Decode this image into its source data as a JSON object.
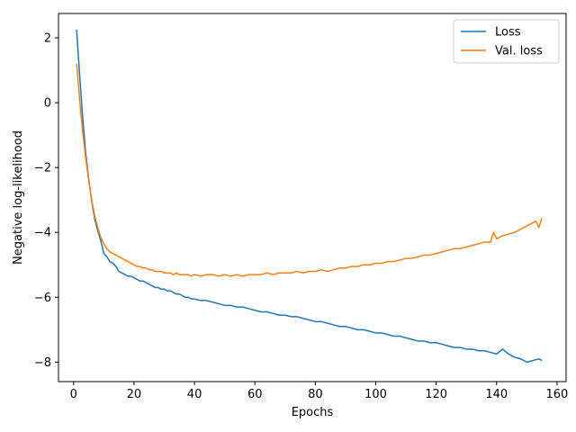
{
  "chart_data": {
    "type": "line",
    "xlabel": "Epochs",
    "ylabel": "Negative log-likelihood",
    "xlim": [
      -5,
      163
    ],
    "ylim": [
      -8.6,
      2.75
    ],
    "xticks": [
      0,
      20,
      40,
      60,
      80,
      100,
      120,
      140,
      160
    ],
    "yticks": [
      -8,
      -6,
      -4,
      -2,
      0,
      2
    ],
    "grid": false,
    "legend_position": "top-right",
    "series": [
      {
        "name": "Loss",
        "color": "#1f77b4",
        "x": [
          1,
          2,
          3,
          4,
          5,
          6,
          7,
          8,
          9,
          10,
          11,
          12,
          13,
          14,
          15,
          16,
          17,
          18,
          19,
          20,
          21,
          22,
          23,
          24,
          25,
          26,
          27,
          28,
          29,
          30,
          31,
          32,
          33,
          34,
          35,
          36,
          37,
          38,
          39,
          40,
          42,
          44,
          46,
          48,
          50,
          52,
          54,
          56,
          58,
          60,
          62,
          64,
          66,
          68,
          70,
          72,
          74,
          76,
          78,
          80,
          82,
          84,
          86,
          88,
          90,
          92,
          94,
          96,
          98,
          100,
          102,
          104,
          106,
          108,
          110,
          112,
          114,
          116,
          118,
          120,
          122,
          124,
          126,
          128,
          130,
          132,
          134,
          136,
          138,
          140,
          142,
          144,
          146,
          148,
          150,
          152,
          154,
          155
        ],
        "values": [
          2.25,
          0.85,
          -0.45,
          -1.55,
          -2.35,
          -3.05,
          -3.6,
          -3.95,
          -4.25,
          -4.65,
          -4.75,
          -4.9,
          -4.95,
          -5.05,
          -5.2,
          -5.25,
          -5.3,
          -5.35,
          -5.35,
          -5.4,
          -5.45,
          -5.5,
          -5.5,
          -5.55,
          -5.6,
          -5.65,
          -5.7,
          -5.7,
          -5.75,
          -5.75,
          -5.8,
          -5.8,
          -5.85,
          -5.9,
          -5.9,
          -5.95,
          -6.0,
          -6.0,
          -6.05,
          -6.05,
          -6.1,
          -6.1,
          -6.15,
          -6.2,
          -6.25,
          -6.25,
          -6.3,
          -6.3,
          -6.35,
          -6.4,
          -6.45,
          -6.45,
          -6.5,
          -6.55,
          -6.55,
          -6.6,
          -6.6,
          -6.65,
          -6.7,
          -6.75,
          -6.75,
          -6.8,
          -6.85,
          -6.9,
          -6.9,
          -6.95,
          -7.0,
          -7.0,
          -7.05,
          -7.1,
          -7.1,
          -7.15,
          -7.2,
          -7.2,
          -7.25,
          -7.3,
          -7.35,
          -7.35,
          -7.4,
          -7.4,
          -7.45,
          -7.5,
          -7.55,
          -7.55,
          -7.6,
          -7.6,
          -7.65,
          -7.65,
          -7.7,
          -7.75,
          -7.6,
          -7.75,
          -7.85,
          -7.9,
          -8.0,
          -7.95,
          -7.9,
          -7.95
        ]
      },
      {
        "name": "Val. loss",
        "color": "#ff7f0e",
        "x": [
          1,
          2,
          3,
          4,
          5,
          6,
          7,
          8,
          9,
          10,
          11,
          12,
          13,
          14,
          15,
          16,
          17,
          18,
          19,
          20,
          21,
          22,
          23,
          24,
          25,
          26,
          27,
          28,
          29,
          30,
          31,
          32,
          33,
          34,
          35,
          36,
          37,
          38,
          39,
          40,
          42,
          44,
          46,
          48,
          50,
          52,
          54,
          56,
          58,
          60,
          62,
          64,
          66,
          68,
          70,
          72,
          74,
          76,
          78,
          80,
          82,
          84,
          86,
          88,
          90,
          92,
          94,
          96,
          98,
          100,
          102,
          104,
          106,
          108,
          110,
          112,
          114,
          116,
          118,
          120,
          122,
          124,
          126,
          128,
          130,
          132,
          134,
          136,
          138,
          139,
          140,
          142,
          144,
          146,
          148,
          150,
          152,
          153,
          154,
          155
        ],
        "values": [
          1.2,
          0.1,
          -0.9,
          -1.7,
          -2.4,
          -3.0,
          -3.5,
          -3.85,
          -4.15,
          -4.35,
          -4.5,
          -4.6,
          -4.65,
          -4.7,
          -4.75,
          -4.8,
          -4.85,
          -4.9,
          -4.95,
          -5.0,
          -5.05,
          -5.05,
          -5.1,
          -5.1,
          -5.15,
          -5.15,
          -5.2,
          -5.2,
          -5.2,
          -5.25,
          -5.25,
          -5.25,
          -5.3,
          -5.25,
          -5.3,
          -5.3,
          -5.3,
          -5.3,
          -5.35,
          -5.3,
          -5.35,
          -5.3,
          -5.3,
          -5.35,
          -5.3,
          -5.35,
          -5.3,
          -5.35,
          -5.3,
          -5.3,
          -5.3,
          -5.25,
          -5.3,
          -5.25,
          -5.25,
          -5.25,
          -5.2,
          -5.25,
          -5.2,
          -5.2,
          -5.15,
          -5.2,
          -5.15,
          -5.1,
          -5.1,
          -5.05,
          -5.05,
          -5.0,
          -5.0,
          -4.95,
          -4.95,
          -4.9,
          -4.9,
          -4.85,
          -4.8,
          -4.8,
          -4.75,
          -4.7,
          -4.7,
          -4.65,
          -4.6,
          -4.55,
          -4.5,
          -4.5,
          -4.45,
          -4.4,
          -4.35,
          -4.3,
          -4.3,
          -4.0,
          -4.2,
          -4.1,
          -4.05,
          -4.0,
          -3.9,
          -3.8,
          -3.7,
          -3.65,
          -3.85,
          -3.55
        ]
      }
    ]
  }
}
